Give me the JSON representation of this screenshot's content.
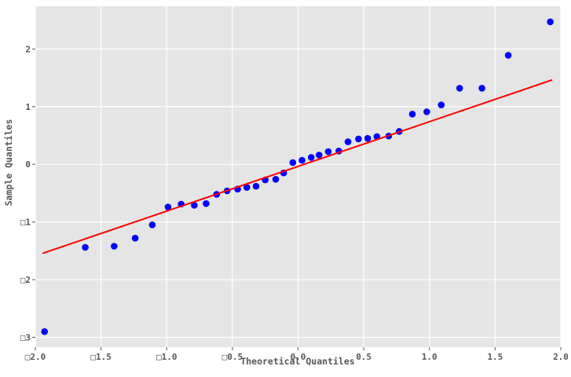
{
  "chart_data": {
    "type": "scatter",
    "title": "",
    "xlabel": "Theoretical Quantiles",
    "ylabel": "Sample Quantiles",
    "xlim": [
      -2.0,
      2.0
    ],
    "ylim": [
      -3.17,
      2.74
    ],
    "grid": true,
    "legend_position": "none",
    "x_tick_values": [
      -2.0,
      -1.5,
      -1.0,
      -0.5,
      0.0,
      0.5,
      1.0,
      1.5,
      2.0
    ],
    "x_tick_labels": [
      "□2.0",
      "□1.5",
      "□1.0",
      "□0.5",
      "0.0",
      "0.5",
      "1.0",
      "1.5",
      "2.0"
    ],
    "y_tick_values": [
      -3,
      -2,
      -1,
      0,
      1,
      2
    ],
    "y_tick_labels": [
      "□3",
      "□2",
      "□1",
      "0",
      "1",
      "2"
    ],
    "series": [
      {
        "name": "sample-quantile-points",
        "type": "scatter",
        "color": "#0000ff",
        "marker_radius": 4.3,
        "points": [
          [
            -1.93,
            -2.9
          ],
          [
            -1.62,
            -1.44
          ],
          [
            -1.4,
            -1.42
          ],
          [
            -1.24,
            -1.28
          ],
          [
            -1.11,
            -1.05
          ],
          [
            -0.99,
            -0.74
          ],
          [
            -0.89,
            -0.69
          ],
          [
            -0.79,
            -0.71
          ],
          [
            -0.7,
            -0.68
          ],
          [
            -0.62,
            -0.52
          ],
          [
            -0.54,
            -0.46
          ],
          [
            -0.46,
            -0.43
          ],
          [
            -0.39,
            -0.4
          ],
          [
            -0.32,
            -0.38
          ],
          [
            -0.25,
            -0.27
          ],
          [
            -0.17,
            -0.26
          ],
          [
            -0.11,
            -0.15
          ],
          [
            -0.04,
            0.03
          ],
          [
            0.03,
            0.07
          ],
          [
            0.1,
            0.12
          ],
          [
            0.16,
            0.16
          ],
          [
            0.23,
            0.22
          ],
          [
            0.31,
            0.23
          ],
          [
            0.38,
            0.39
          ],
          [
            0.46,
            0.44
          ],
          [
            0.53,
            0.45
          ],
          [
            0.6,
            0.48
          ],
          [
            0.69,
            0.49
          ],
          [
            0.77,
            0.57
          ],
          [
            0.87,
            0.87
          ],
          [
            0.98,
            0.91
          ],
          [
            1.09,
            1.03
          ],
          [
            1.23,
            1.32
          ],
          [
            1.4,
            1.32
          ],
          [
            1.6,
            1.89
          ],
          [
            1.92,
            2.47
          ]
        ]
      },
      {
        "name": "reference-line",
        "type": "line",
        "color": "#ff0000",
        "line_width": 2,
        "points": [
          [
            -1.94,
            -1.54
          ],
          [
            1.93,
            1.46
          ]
        ]
      }
    ],
    "colors": {
      "figure_bg": "#ffffff",
      "plot_bg": "#e5e5e5",
      "grid": "#ffffff",
      "tick_text": "#555555",
      "point": "#0000ff",
      "line": "#ff0000"
    }
  }
}
